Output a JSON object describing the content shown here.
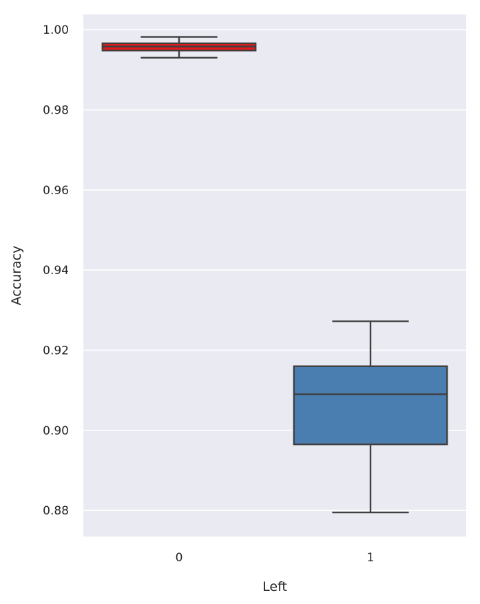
{
  "chart_data": {
    "type": "box",
    "xlabel": "Left",
    "ylabel": "Accuracy",
    "ylim": [
      0.8735,
      1.0038
    ],
    "yticks": [
      "0.88",
      "0.90",
      "0.92",
      "0.94",
      "0.96",
      "0.98",
      "1.00"
    ],
    "categories": [
      "0",
      "1"
    ],
    "grid": true,
    "background": "#eaeaf2",
    "boxes": [
      {
        "category": "0",
        "whisker_low": 0.993,
        "q1": 0.9948,
        "median": 0.9958,
        "q3": 0.9966,
        "whisker_high": 0.9982,
        "color": "#e41a1c"
      },
      {
        "category": "1",
        "whisker_low": 0.8795,
        "q1": 0.8965,
        "median": 0.909,
        "q3": 0.916,
        "whisker_high": 0.9272,
        "color": "#4a7eb0"
      }
    ],
    "line_color": "#3f3f3f"
  }
}
